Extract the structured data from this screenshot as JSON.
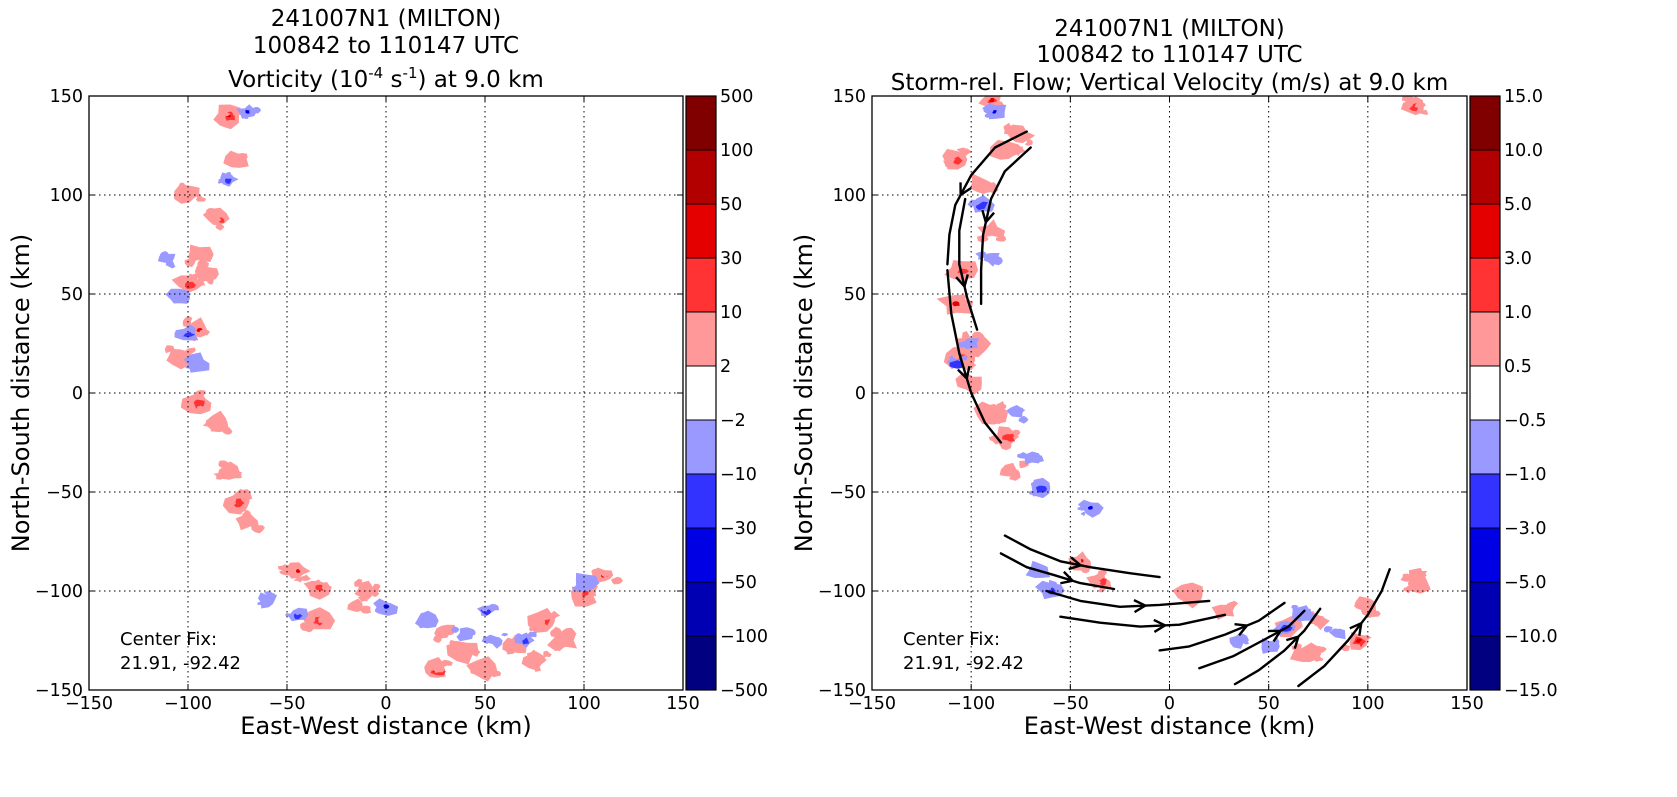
{
  "chart_data": [
    {
      "type": "contour",
      "title_lines": [
        "241007N1 (MILTON)",
        "100842 to 110147 UTC"
      ],
      "title_main": {
        "pre": "Vorticity (10",
        "sup1": "-4",
        "mid": " s",
        "sup2": "-1",
        "post": ") at 9.0 km"
      },
      "xlabel": "East-West distance (km)",
      "ylabel": "North-South distance (km)",
      "xlim": [
        -150,
        150
      ],
      "ylim": [
        -150,
        150
      ],
      "xticks": [
        "−150",
        "−100",
        "−50",
        "0",
        "50",
        "100",
        "150"
      ],
      "yticks": [
        "−150",
        "−100",
        "−50",
        "0",
        "50",
        "100",
        "150"
      ],
      "grid": true,
      "annotation": [
        "Center Fix:",
        "21.91, -92.42"
      ],
      "colorbar": {
        "labels": [
          "500",
          "100",
          "50",
          "30",
          "10",
          "2",
          "−2",
          "−10",
          "−30",
          "−50",
          "−100",
          "−500"
        ],
        "colors_top_to_bottom": [
          "#800000",
          "#b20000",
          "#e50000",
          "#ff3333",
          "#ff9999",
          "#ffffff",
          "#9999ff",
          "#3333ff",
          "#0000e5",
          "#0000b2",
          "#000080"
        ]
      },
      "features": {
        "positive_patches": [
          [
            -80,
            140
          ],
          [
            -75,
            118
          ],
          [
            -100,
            100
          ],
          [
            -85,
            88
          ],
          [
            -95,
            70
          ],
          [
            -90,
            60
          ],
          [
            -100,
            55
          ],
          [
            -95,
            32
          ],
          [
            -105,
            18
          ],
          [
            -95,
            -5
          ],
          [
            -85,
            -15
          ],
          [
            -80,
            -40
          ],
          [
            -75,
            -55
          ],
          [
            -70,
            -65
          ],
          [
            -45,
            -90
          ],
          [
            -35,
            -98
          ],
          [
            -10,
            -100
          ],
          [
            -15,
            -108
          ],
          [
            -35,
            -115
          ],
          [
            30,
            -120
          ],
          [
            40,
            -130
          ],
          [
            25,
            -140
          ],
          [
            50,
            -140
          ],
          [
            65,
            -128
          ],
          [
            80,
            -115
          ],
          [
            90,
            -125
          ],
          [
            75,
            -135
          ],
          [
            100,
            -102
          ],
          [
            110,
            -92
          ]
        ],
        "negative_patches": [
          [
            -70,
            142
          ],
          [
            -80,
            108
          ],
          [
            -110,
            68
          ],
          [
            -105,
            48
          ],
          [
            -100,
            30
          ],
          [
            -95,
            15
          ],
          [
            -60,
            -105
          ],
          [
            -45,
            -112
          ],
          [
            0,
            -108
          ],
          [
            20,
            -115
          ],
          [
            50,
            -110
          ],
          [
            55,
            -125
          ],
          [
            40,
            -122
          ],
          [
            70,
            -125
          ],
          [
            100,
            -96
          ]
        ]
      }
    },
    {
      "type": "contour+streamlines",
      "title_lines": [
        "241007N1 (MILTON)",
        "100842 to 110147 UTC",
        "Storm-rel. Flow; Vertical Velocity (m/s) at 9.0 km"
      ],
      "xlabel": "East-West distance (km)",
      "ylabel": "North-South distance (km)",
      "xlim": [
        -150,
        150
      ],
      "ylim": [
        -150,
        150
      ],
      "xticks": [
        "−150",
        "−100",
        "−50",
        "0",
        "50",
        "100",
        "150"
      ],
      "yticks": [
        "−150",
        "−100",
        "−50",
        "0",
        "50",
        "100",
        "150"
      ],
      "grid": true,
      "annotation": [
        "Center Fix:",
        "21.91, -92.42"
      ],
      "colorbar": {
        "labels": [
          "15.0",
          "10.0",
          "5.0",
          "3.0",
          "1.0",
          "0.5",
          "−0.5",
          "−1.0",
          "−3.0",
          "−5.0",
          "−10.0",
          "−15.0"
        ],
        "colors_top_to_bottom": [
          "#800000",
          "#b20000",
          "#e50000",
          "#ff3333",
          "#ff9999",
          "#ffffff",
          "#9999ff",
          "#3333ff",
          "#0000e5",
          "#0000b2",
          "#000080"
        ]
      },
      "features": {
        "positive_patches": [
          [
            -90,
            148
          ],
          [
            -75,
            130
          ],
          [
            -82,
            122
          ],
          [
            -108,
            118
          ],
          [
            -95,
            105
          ],
          [
            -90,
            82
          ],
          [
            -105,
            62
          ],
          [
            -108,
            45
          ],
          [
            -98,
            25
          ],
          [
            -105,
            18
          ],
          [
            -100,
            5
          ],
          [
            -90,
            -10
          ],
          [
            -82,
            -22
          ],
          [
            -80,
            -40
          ],
          [
            -45,
            -85
          ],
          [
            -35,
            -95
          ],
          [
            10,
            -102
          ],
          [
            28,
            -110
          ],
          [
            60,
            -118
          ],
          [
            75,
            -115
          ],
          [
            70,
            -132
          ],
          [
            95,
            -125
          ],
          [
            100,
            -108
          ],
          [
            125,
            -95
          ],
          [
            123,
            145
          ]
        ],
        "negative_patches": [
          [
            -88,
            142
          ],
          [
            -95,
            95
          ],
          [
            -90,
            68
          ],
          [
            -100,
            25
          ],
          [
            -108,
            15
          ],
          [
            -78,
            -10
          ],
          [
            -70,
            -33
          ],
          [
            -65,
            -48
          ],
          [
            -40,
            -58
          ],
          [
            -65,
            -90
          ],
          [
            -60,
            -100
          ],
          [
            35,
            -125
          ],
          [
            50,
            -128
          ],
          [
            58,
            -118
          ],
          [
            68,
            -112
          ],
          [
            85,
            -122
          ]
        ]
      },
      "streamlines": [
        [
          [
            -72,
            132
          ],
          [
            -88,
            124
          ],
          [
            -100,
            110
          ],
          [
            -108,
            95
          ],
          [
            -111,
            80
          ],
          [
            -112,
            65
          ]
        ],
        [
          [
            -70,
            124
          ],
          [
            -83,
            112
          ],
          [
            -90,
            98
          ],
          [
            -94,
            80
          ],
          [
            -95,
            62
          ],
          [
            -95,
            45
          ]
        ],
        [
          [
            -103,
            98
          ],
          [
            -106,
            82
          ],
          [
            -106,
            65
          ],
          [
            -102,
            48
          ],
          [
            -97,
            32
          ]
        ],
        [
          [
            -112,
            62
          ],
          [
            -110,
            40
          ],
          [
            -106,
            20
          ],
          [
            -100,
            0
          ],
          [
            -93,
            -15
          ],
          [
            -85,
            -25
          ]
        ],
        [
          [
            -83,
            -72
          ],
          [
            -70,
            -79
          ],
          [
            -55,
            -85
          ],
          [
            -40,
            -88
          ],
          [
            -20,
            -91
          ],
          [
            -5,
            -93
          ]
        ],
        [
          [
            -85,
            -81
          ],
          [
            -72,
            -88
          ],
          [
            -58,
            -92
          ],
          [
            -45,
            -96
          ],
          [
            -28,
            -99
          ]
        ],
        [
          [
            -62,
            -100
          ],
          [
            -45,
            -105
          ],
          [
            -25,
            -108
          ],
          [
            -5,
            -107
          ],
          [
            20,
            -105
          ]
        ],
        [
          [
            -55,
            -113
          ],
          [
            -35,
            -116
          ],
          [
            -15,
            -118
          ],
          [
            5,
            -117
          ],
          [
            28,
            -112
          ]
        ],
        [
          [
            -5,
            -130
          ],
          [
            10,
            -128
          ],
          [
            28,
            -122
          ],
          [
            45,
            -115
          ],
          [
            58,
            -106
          ]
        ],
        [
          [
            15,
            -139
          ],
          [
            32,
            -133
          ],
          [
            47,
            -125
          ],
          [
            60,
            -118
          ],
          [
            68,
            -110
          ]
        ],
        [
          [
            33,
            -147
          ],
          [
            45,
            -140
          ],
          [
            58,
            -130
          ],
          [
            68,
            -120
          ],
          [
            76,
            -109
          ]
        ],
        [
          [
            65,
            -148
          ],
          [
            78,
            -138
          ],
          [
            90,
            -125
          ],
          [
            100,
            -112
          ],
          [
            107,
            -100
          ],
          [
            111,
            -89
          ]
        ]
      ]
    }
  ]
}
